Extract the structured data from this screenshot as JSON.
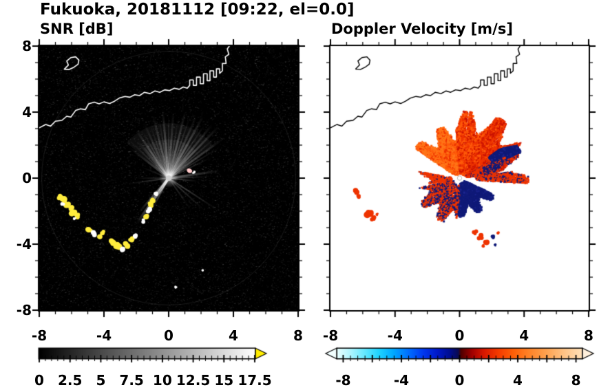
{
  "title": "Fukuoka, 20181112 [09:22, el=0.0]",
  "panels": {
    "snr": {
      "label": "SNR [dB]",
      "xticks": [
        -8,
        -4,
        0,
        4,
        8
      ],
      "yticks": [
        8,
        4,
        0,
        -4,
        -8
      ],
      "colorbar": {
        "min": 0,
        "max": 17.5,
        "minor_step": 0.5,
        "major_ticks": [
          0,
          2.5,
          5,
          7.5,
          10,
          12.5,
          15,
          17.5
        ],
        "tick_labels": [
          "0",
          "2.5",
          "5",
          "7.5",
          "10",
          "12.5",
          "15",
          "17.5"
        ],
        "label_values": [
          0,
          2.5,
          5,
          7.5,
          10,
          12.5,
          15,
          17.5
        ],
        "stops": [
          [
            0,
            "#000000"
          ],
          [
            1,
            "#ffffff"
          ]
        ],
        "over_arrow_color": "#ffec00"
      }
    },
    "doppler": {
      "label": "Doppler Velocity [m/s]",
      "xticks": [
        -8,
        -4,
        0,
        4,
        8
      ],
      "colorbar": {
        "min": -8.4,
        "max": 8.4,
        "minor_step": 0.5,
        "major_ticks": [
          -8,
          -6,
          -4,
          -2,
          0,
          2,
          4,
          6,
          8
        ],
        "tick_labels": [
          "-8",
          "-4",
          "0",
          "4",
          "8"
        ],
        "label_values": [
          -8,
          -4,
          0,
          4,
          8
        ],
        "stops": [
          [
            0,
            "#e8ffff"
          ],
          [
            0.05,
            "#b3f6ff"
          ],
          [
            0.11,
            "#66e9ff"
          ],
          [
            0.17,
            "#1fd3ff"
          ],
          [
            0.23,
            "#00a8ff"
          ],
          [
            0.29,
            "#0070ff"
          ],
          [
            0.35,
            "#0038f0"
          ],
          [
            0.41,
            "#0018c8"
          ],
          [
            0.46,
            "#000d90"
          ],
          [
            0.495,
            "#0a0a50"
          ],
          [
            0.505,
            "#4d0000"
          ],
          [
            0.55,
            "#a00000"
          ],
          [
            0.6,
            "#d81800"
          ],
          [
            0.66,
            "#f53c00"
          ],
          [
            0.72,
            "#ff6008"
          ],
          [
            0.78,
            "#ff8126"
          ],
          [
            0.85,
            "#ffa04d"
          ],
          [
            0.92,
            "#ffc080"
          ],
          [
            1,
            "#ffe0b8"
          ]
        ],
        "under_arrow_color": "#f2ffff",
        "over_arrow_color": "#fff0dc"
      }
    }
  },
  "chart_data": {
    "type": "radar_ppi_pair",
    "site": "Fukuoka",
    "date": "20181112",
    "time": "09:22",
    "elevation_deg": 0.0,
    "axis": {
      "xlim": [
        -8,
        8
      ],
      "ylim": [
        -8,
        8
      ]
    },
    "panel_scales": [
      {
        "name": "SNR",
        "units": "dB",
        "range": [
          0,
          17.5
        ]
      },
      {
        "name": "Doppler Velocity",
        "units": "m/s",
        "range": [
          -8,
          8
        ]
      }
    ],
    "coastline": [
      [
        -8,
        3.05
      ],
      [
        -7.6,
        3.25
      ],
      [
        -7.3,
        3.15
      ],
      [
        -7,
        3.45
      ],
      [
        -6.6,
        3.5
      ],
      [
        -6.3,
        3.75
      ],
      [
        -6.05,
        3.7
      ],
      [
        -5.75,
        4.1
      ],
      [
        -5.45,
        4.2
      ],
      [
        -5.15,
        4.15
      ],
      [
        -4.95,
        4.5
      ],
      [
        -4.6,
        4.6
      ],
      [
        -4.3,
        4.5
      ],
      [
        -4,
        4.62
      ],
      [
        -3.65,
        4.52
      ],
      [
        -3.35,
        4.66
      ],
      [
        -3.05,
        4.85
      ],
      [
        -2.7,
        4.95
      ],
      [
        -2.4,
        4.9
      ],
      [
        -2.1,
        5.05
      ],
      [
        -1.8,
        5
      ],
      [
        -1.5,
        5.2
      ],
      [
        -1.15,
        5.12
      ],
      [
        -0.85,
        5.28
      ],
      [
        -0.55,
        5.2
      ],
      [
        -0.25,
        5.35
      ],
      [
        0.05,
        5.3
      ],
      [
        0.35,
        5.45
      ],
      [
        0.65,
        5.38
      ],
      [
        0.9,
        5.52
      ],
      [
        1.15,
        5.45
      ],
      [
        1.3,
        5.62
      ],
      [
        1.3,
        5.95
      ],
      [
        1.52,
        5.95
      ],
      [
        1.52,
        5.62
      ],
      [
        1.72,
        5.62
      ],
      [
        1.72,
        6.12
      ],
      [
        1.95,
        6.12
      ],
      [
        1.95,
        5.72
      ],
      [
        2.15,
        5.72
      ],
      [
        2.15,
        6.32
      ],
      [
        2.38,
        6.32
      ],
      [
        2.38,
        5.9
      ],
      [
        2.55,
        5.9
      ],
      [
        2.55,
        6.5
      ],
      [
        2.78,
        6.5
      ],
      [
        2.78,
        6.12
      ],
      [
        2.95,
        6.12
      ],
      [
        2.95,
        6.62
      ],
      [
        3.15,
        6.62
      ],
      [
        3.15,
        6.35
      ],
      [
        3.32,
        6.5
      ],
      [
        3.32,
        6.95
      ],
      [
        3.55,
        6.95
      ],
      [
        3.5,
        7.35
      ],
      [
        3.72,
        7.5
      ],
      [
        3.62,
        7.82
      ],
      [
        3.78,
        8.05
      ]
    ],
    "island": [
      [
        -6.45,
        6.6
      ],
      [
        -6.2,
        6.85
      ],
      [
        -6.3,
        7.1
      ],
      [
        -6.05,
        7.3
      ],
      [
        -5.75,
        7.35
      ],
      [
        -5.55,
        7.15
      ],
      [
        -5.6,
        6.9
      ],
      [
        -5.85,
        6.72
      ],
      [
        -6.15,
        6.58
      ],
      [
        -6.45,
        6.6
      ]
    ],
    "snr": {
      "streaks": [
        [
          142,
          3.1,
          3,
          0.3
        ],
        [
          136,
          3.4,
          2,
          0.22
        ],
        [
          130,
          3,
          4,
          0.34
        ],
        [
          124,
          3.6,
          3,
          0.45
        ],
        [
          119,
          3.3,
          2,
          0.3
        ],
        [
          114,
          3.8,
          3,
          0.28
        ],
        [
          109,
          3.5,
          2,
          0.25
        ],
        [
          104,
          4,
          3,
          0.36
        ],
        [
          99,
          3.7,
          2,
          0.3
        ],
        [
          95,
          4.2,
          3,
          0.46
        ],
        [
          90,
          3.9,
          2,
          0.28
        ],
        [
          86,
          4.1,
          3,
          0.34
        ],
        [
          81,
          3.6,
          2,
          0.26
        ],
        [
          76,
          4.3,
          3,
          0.4
        ],
        [
          71,
          4,
          2,
          0.3
        ],
        [
          66,
          4.2,
          3,
          0.36
        ],
        [
          61,
          4.4,
          3,
          0.46
        ],
        [
          56,
          4,
          2,
          0.3
        ],
        [
          51,
          4.3,
          3,
          0.38
        ],
        [
          46,
          4.5,
          3,
          0.42
        ],
        [
          41,
          3.9,
          2,
          0.28
        ],
        [
          36,
          4.2,
          3,
          0.34
        ],
        [
          31,
          3.6,
          2,
          0.24
        ],
        [
          26,
          3,
          2,
          0.2
        ],
        [
          8,
          3.2,
          3,
          0.36
        ],
        [
          2,
          2.4,
          2,
          0.26
        ],
        [
          354,
          1.8,
          2,
          0.3
        ],
        [
          327,
          3.6,
          2,
          0.28
        ],
        [
          318,
          3,
          2,
          0.22
        ],
        [
          305,
          2.2,
          2,
          0.18
        ],
        [
          240,
          1.6,
          2,
          0.3
        ],
        [
          235,
          3.4,
          4,
          0.75
        ],
        [
          229,
          2.8,
          3,
          0.5
        ],
        [
          242,
          2.2,
          2,
          0.4
        ],
        [
          188,
          2.6,
          2,
          0.22
        ],
        [
          180,
          2,
          2,
          0.16
        ],
        [
          158,
          1.8,
          2,
          0.14
        ]
      ],
      "blobs": [
        [
          -6.75,
          -1.15,
          0.18,
          "y"
        ],
        [
          -6.5,
          -1.35,
          0.22,
          "y"
        ],
        [
          -6.3,
          -1.6,
          0.2,
          "y"
        ],
        [
          -6.55,
          -1.55,
          0.12,
          "w"
        ],
        [
          -6.05,
          -1.8,
          0.18,
          "y"
        ],
        [
          -5.9,
          -2.1,
          0.22,
          "y"
        ],
        [
          -5.65,
          -2.3,
          0.18,
          "y"
        ],
        [
          -5.8,
          -2.45,
          0.1,
          "w"
        ],
        [
          -4.9,
          -3.1,
          0.2,
          "y"
        ],
        [
          -4.6,
          -3.35,
          0.2,
          "w"
        ],
        [
          -4.3,
          -3.5,
          0.18,
          "y"
        ],
        [
          -4.05,
          -3.3,
          0.15,
          "y"
        ],
        [
          -3.45,
          -3.85,
          0.2,
          "y"
        ],
        [
          -3.15,
          -4.1,
          0.22,
          "y"
        ],
        [
          -2.85,
          -4.3,
          0.18,
          "w"
        ],
        [
          -2.6,
          -4.05,
          0.2,
          "y"
        ],
        [
          -2.3,
          -3.7,
          0.18,
          "y"
        ],
        [
          -2.05,
          -3.5,
          0.15,
          "w"
        ],
        [
          -0.75,
          -0.95,
          0.15,
          "w"
        ],
        [
          -0.95,
          -1.3,
          0.18,
          "y"
        ],
        [
          -1.1,
          -1.6,
          0.16,
          "y"
        ],
        [
          -1.25,
          -1.95,
          0.18,
          "w"
        ],
        [
          -1.4,
          -2.3,
          0.16,
          "y"
        ],
        [
          -1.55,
          -2.6,
          0.14,
          "w"
        ],
        [
          1.3,
          0.45,
          0.15,
          "p"
        ],
        [
          1.55,
          0.35,
          0.1,
          "w"
        ],
        [
          0.45,
          -6.6,
          0.08,
          "w"
        ],
        [
          2.1,
          -5.6,
          0.06,
          "w"
        ]
      ]
    },
    "doppler": {
      "wedges": [
        {
          "a0": 95,
          "a1": 146,
          "r0": 0.3,
          "r1": 3.4,
          "n": 5200,
          "c": [
            [
              "o",
              0.55
            ],
            [
              "O",
              0.3
            ],
            [
              "r",
              0.15
            ]
          ],
          "gaps": [
            104,
            121,
            133
          ]
        },
        {
          "a0": 60,
          "a1": 95,
          "r0": 0.3,
          "r1": 4.2,
          "n": 6200,
          "c": [
            [
              "O",
              0.45
            ],
            [
              "r",
              0.35
            ],
            [
              "R",
              0.2
            ]
          ],
          "gaps": [
            72,
            83
          ]
        },
        {
          "a0": 30,
          "a1": 60,
          "r0": 0.3,
          "r1": 4.5,
          "n": 6200,
          "c": [
            [
              "r",
              0.5
            ],
            [
              "R",
              0.3
            ],
            [
              "O",
              0.2
            ]
          ],
          "gaps": [
            47
          ]
        },
        {
          "a0": 12,
          "a1": 30,
          "r0": 0.35,
          "r1": 3.9,
          "n": 3200,
          "c": [
            [
              "r",
              0.55
            ],
            [
              "R",
              0.25
            ],
            [
              "n",
              0.2
            ]
          ]
        },
        {
          "a0": 24,
          "a1": 37,
          "r0": 2.2,
          "r1": 4.1,
          "n": 2600,
          "c": [
            [
              "n",
              0.85
            ],
            [
              "N",
              0.15
            ]
          ]
        },
        {
          "a0": 5,
          "a1": 26,
          "r0": 1.5,
          "r1": 3.1,
          "n": 1800,
          "c": [
            [
              "n",
              0.65
            ],
            [
              "r",
              0.35
            ]
          ]
        },
        {
          "a0": -4,
          "a1": 8,
          "r0": 0.8,
          "r1": 4.2,
          "n": 900,
          "c": [
            [
              "r",
              0.8
            ],
            [
              "n",
              0.2
            ]
          ]
        },
        {
          "a0": -95,
          "a1": -25,
          "r0": 0.25,
          "r1": 2.35,
          "n": 5200,
          "c": [
            [
              "n",
              0.9
            ],
            [
              "N",
              0.1
            ]
          ],
          "gaps": [
            -52
          ]
        },
        {
          "a0": -168,
          "a1": -95,
          "r0": 0.4,
          "r1": 2.9,
          "n": 2600,
          "c": [
            [
              "r",
              0.6
            ],
            [
              "n",
              0.4
            ]
          ],
          "gaps": [
            -120,
            -138,
            -155
          ]
        },
        {
          "a0": 170,
          "a1": 188,
          "r0": 0.5,
          "r1": 2.6,
          "n": 500,
          "c": [
            [
              "r",
              0.9
            ],
            [
              "n",
              0.1
            ]
          ],
          "gaps": [
            178
          ]
        }
      ],
      "blobs": [
        [
          -6.45,
          -0.85,
          0.22,
          "r"
        ],
        [
          -6.25,
          -1.08,
          0.14,
          "r"
        ],
        [
          -5.62,
          -2.12,
          0.26,
          "r"
        ],
        [
          -5.35,
          -2.42,
          0.18,
          "r"
        ],
        [
          -5.12,
          -2.2,
          0.1,
          "r"
        ],
        [
          0.95,
          -3.3,
          0.16,
          "r"
        ],
        [
          1.28,
          -3.55,
          0.2,
          "r"
        ],
        [
          1.66,
          -3.82,
          0.2,
          "r"
        ],
        [
          2.05,
          -3.55,
          0.13,
          "n"
        ],
        [
          1.45,
          -4.12,
          0.12,
          "r"
        ],
        [
          2.42,
          -3.3,
          0.1,
          "r"
        ],
        [
          2.2,
          -4.05,
          0.08,
          "n"
        ]
      ]
    }
  }
}
